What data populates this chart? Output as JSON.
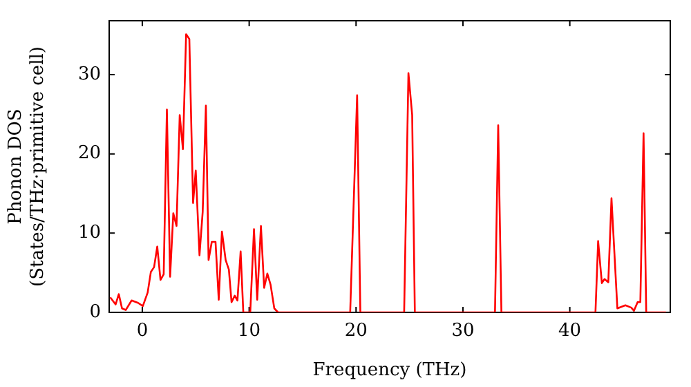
{
  "chart_data": {
    "type": "line",
    "xlabel": "Frequency (THz)",
    "ylabel": "Phonon DOS\n(States/THz·primitive cell)",
    "xlim": [
      -3.1,
      49.4
    ],
    "ylim": [
      0,
      36.8
    ],
    "xticks": [
      0,
      10,
      20,
      30,
      40
    ],
    "yticks": [
      0,
      10,
      20,
      30
    ],
    "grid": false,
    "legend": false,
    "marker": "none",
    "line_style": "solid",
    "series": [
      {
        "color": "#ff0000",
        "x": [
          -3.0,
          -2.5,
          -2.2,
          -1.9,
          -1.55,
          -1.0,
          -0.4,
          0.05,
          0.5,
          0.8,
          1.1,
          1.4,
          1.7,
          2.0,
          2.3,
          2.6,
          2.9,
          3.2,
          3.5,
          3.8,
          4.1,
          4.4,
          4.75,
          5.0,
          5.35,
          5.65,
          5.95,
          6.2,
          6.5,
          6.85,
          7.15,
          7.45,
          7.8,
          8.1,
          8.35,
          8.65,
          8.9,
          9.2,
          9.45,
          10.1,
          10.45,
          10.75,
          11.1,
          11.4,
          11.7,
          12.0,
          12.35,
          12.7,
          19.45,
          20.1,
          20.4,
          24.5,
          24.9,
          25.25,
          25.5,
          33.0,
          33.3,
          33.6,
          42.4,
          42.65,
          43.0,
          43.25,
          43.6,
          43.9,
          44.45,
          45.2,
          45.75,
          46.0,
          46.35,
          46.6,
          46.9,
          47.15,
          49.0
        ],
        "values": [
          1.9,
          1.0,
          2.3,
          0.5,
          0.3,
          1.5,
          1.2,
          0.8,
          2.5,
          5.1,
          5.7,
          8.3,
          4.1,
          4.8,
          25.6,
          4.5,
          12.5,
          10.9,
          24.9,
          20.6,
          35.1,
          34.5,
          13.8,
          17.9,
          7.2,
          12.7,
          26.1,
          6.6,
          8.9,
          8.9,
          1.6,
          10.2,
          6.6,
          5.4,
          1.3,
          2.1,
          1.5,
          7.7,
          0,
          0,
          10.5,
          1.6,
          10.9,
          3.1,
          4.9,
          3.5,
          0.5,
          0,
          0,
          27.4,
          0,
          0,
          30.2,
          24.9,
          0,
          0,
          23.6,
          0,
          0,
          9.0,
          3.7,
          4.2,
          3.8,
          14.4,
          0.5,
          0.9,
          0.6,
          0.2,
          1.3,
          1.3,
          22.6,
          0,
          0
        ]
      }
    ]
  }
}
